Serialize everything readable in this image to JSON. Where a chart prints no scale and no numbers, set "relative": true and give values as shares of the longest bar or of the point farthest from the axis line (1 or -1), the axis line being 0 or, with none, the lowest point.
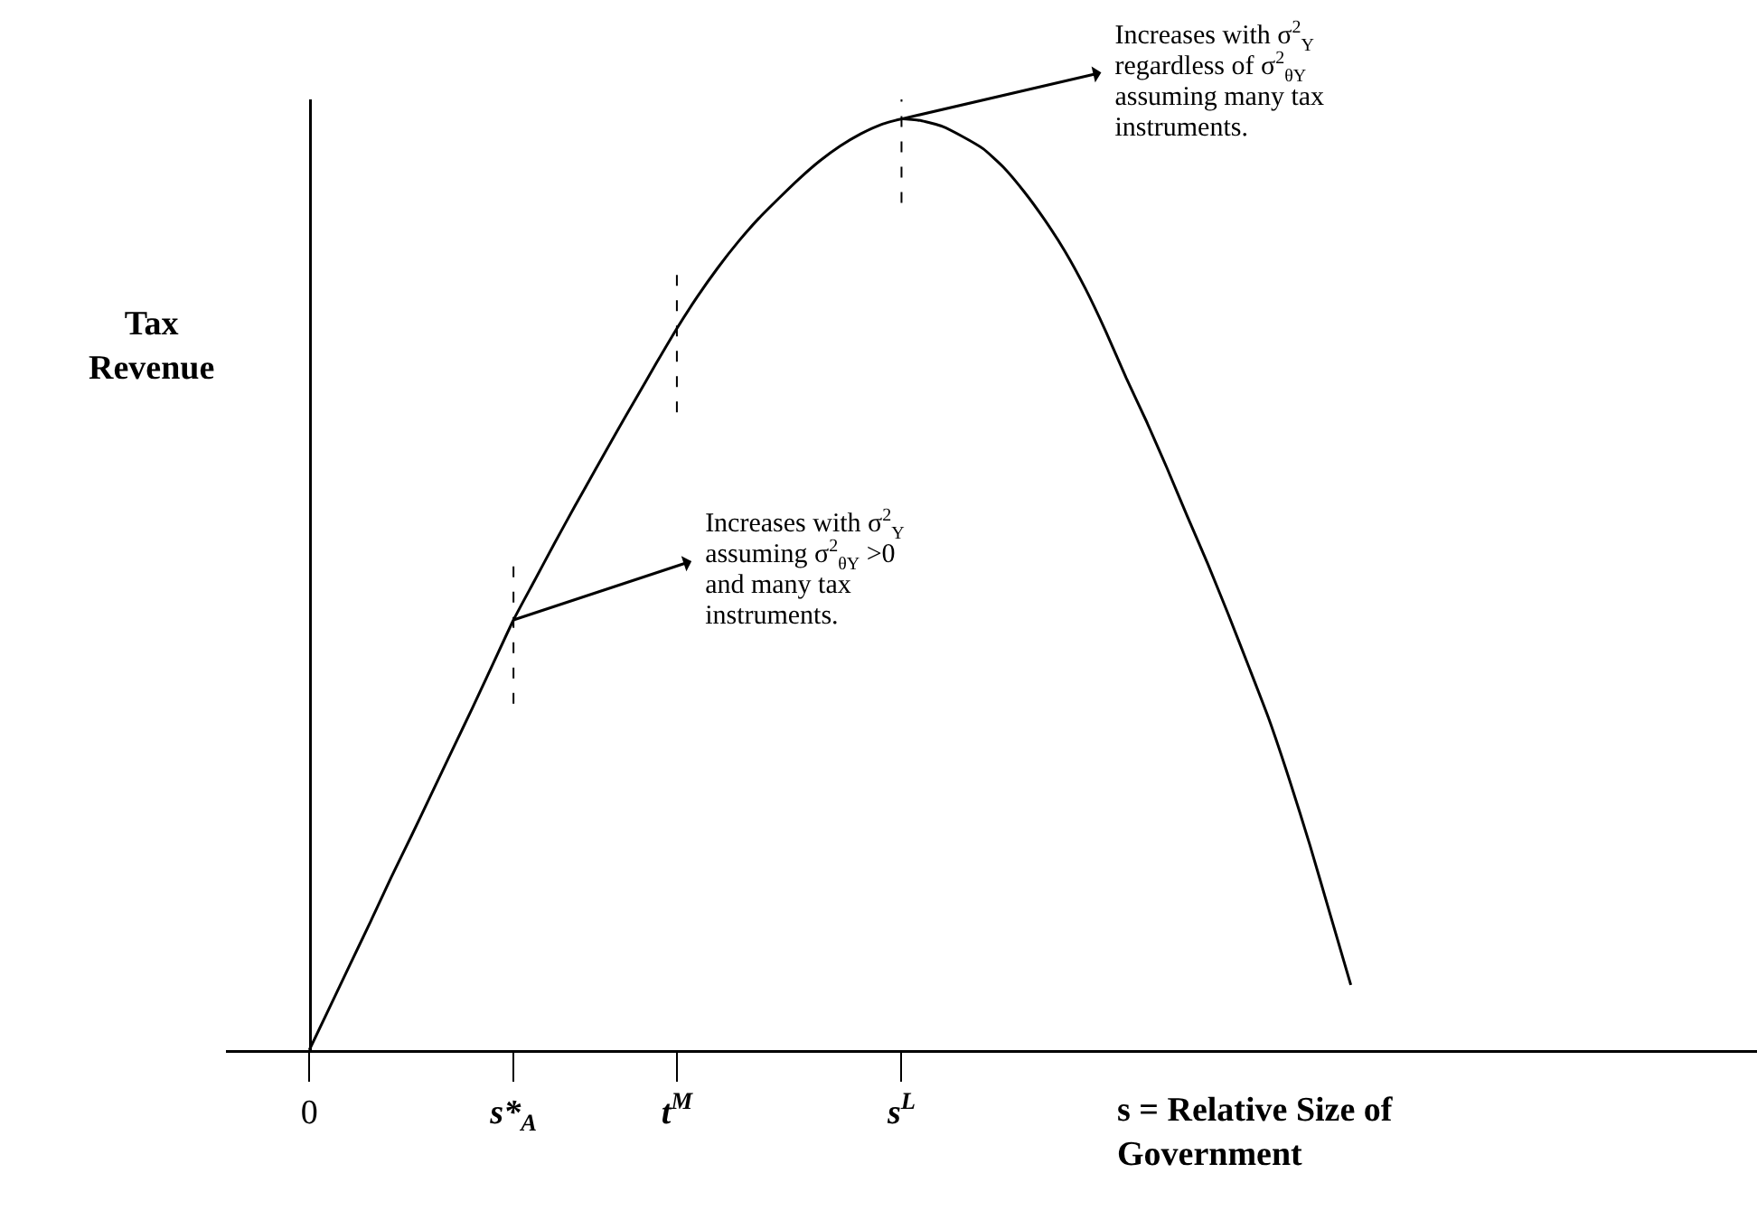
{
  "chart_data": {
    "type": "line",
    "relative": true,
    "ylabel": "Tax\nRevenue",
    "xlabel": "s = Relative Size of\nGovernment",
    "categories": [
      "0",
      null,
      null,
      null,
      null,
      null,
      null,
      null,
      null,
      null,
      "s*$_{A}$",
      null,
      null,
      null,
      null,
      null,
      null,
      null,
      "t$^{M}$",
      null,
      null,
      null,
      null,
      null,
      null,
      null,
      null,
      null,
      null,
      "s$^{L}$",
      null,
      null,
      null,
      null,
      null,
      null,
      null,
      null,
      null,
      null,
      null,
      null,
      null,
      null,
      null,
      null,
      null,
      null,
      null,
      null,
      null,
      null
    ],
    "series": [
      {
        "color": "#000000",
        "values": [
          0,
          0.046,
          0.092,
          0.138,
          0.185,
          0.23,
          0.276,
          0.322,
          0.368,
          0.415,
          0.462,
          0.503,
          0.544,
          0.584,
          0.623,
          0.662,
          0.7,
          0.738,
          0.775,
          0.809,
          0.84,
          0.868,
          0.893,
          0.915,
          0.936,
          0.955,
          0.971,
          0.984,
          0.994,
          1,
          0.998,
          0.992,
          0.981,
          0.968,
          0.948,
          0.922,
          0.892,
          0.858,
          0.818,
          0.772,
          0.722,
          0.675,
          0.625,
          0.573,
          0.522,
          0.468,
          0.412,
          0.355,
          0.29,
          0.22,
          0.145,
          0.07
        ]
      }
    ],
    "annotations": [
      "Increases with σ$^{2}$$_{Y}$\nregardless of σ$^{2}$$_{θY}$\nassuming many tax\ninstruments.",
      "Increases with σ$^{2}$$_{Y}$\nassuming σ$^{2}$$_{θY}$ >0\nand many tax\ninstruments."
    ],
    "line_style": "solid"
  }
}
